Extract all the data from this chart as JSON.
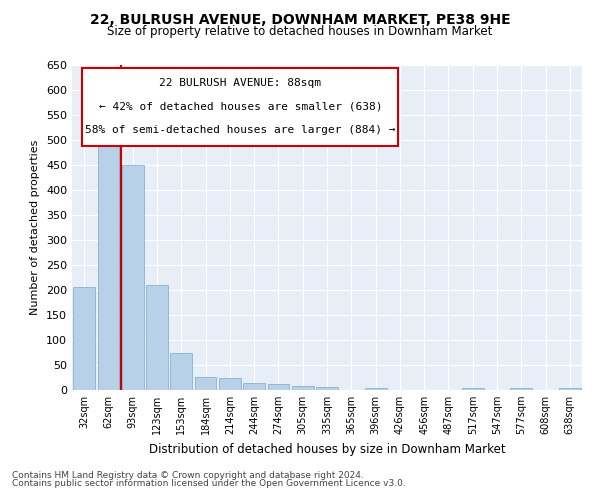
{
  "title_line1": "22, BULRUSH AVENUE, DOWNHAM MARKET, PE38 9HE",
  "title_line2": "Size of property relative to detached houses in Downham Market",
  "xlabel": "Distribution of detached houses by size in Downham Market",
  "ylabel": "Number of detached properties",
  "footnote1": "Contains HM Land Registry data © Crown copyright and database right 2024.",
  "footnote2": "Contains public sector information licensed under the Open Government Licence v3.0.",
  "bar_color": "#b8d0e8",
  "bar_edge_color": "#7aaac8",
  "highlight_color": "#cc0000",
  "annotation_box_color": "#cc0000",
  "background_color": "#e8eef8",
  "categories": [
    "32sqm",
    "62sqm",
    "93sqm",
    "123sqm",
    "153sqm",
    "184sqm",
    "214sqm",
    "244sqm",
    "274sqm",
    "305sqm",
    "335sqm",
    "365sqm",
    "396sqm",
    "426sqm",
    "456sqm",
    "487sqm",
    "517sqm",
    "547sqm",
    "577sqm",
    "608sqm",
    "638sqm"
  ],
  "values": [
    207,
    530,
    450,
    210,
    75,
    27,
    25,
    15,
    12,
    8,
    7,
    0,
    5,
    0,
    0,
    0,
    5,
    0,
    5,
    0,
    5
  ],
  "annotation_text_line1": "22 BULRUSH AVENUE: 88sqm",
  "annotation_text_line2": "← 42% of detached houses are smaller (638)",
  "annotation_text_line3": "58% of semi-detached houses are larger (884) →",
  "vline_x": 1.5,
  "ylim": [
    0,
    650
  ],
  "yticks": [
    0,
    50,
    100,
    150,
    200,
    250,
    300,
    350,
    400,
    450,
    500,
    550,
    600,
    650
  ]
}
